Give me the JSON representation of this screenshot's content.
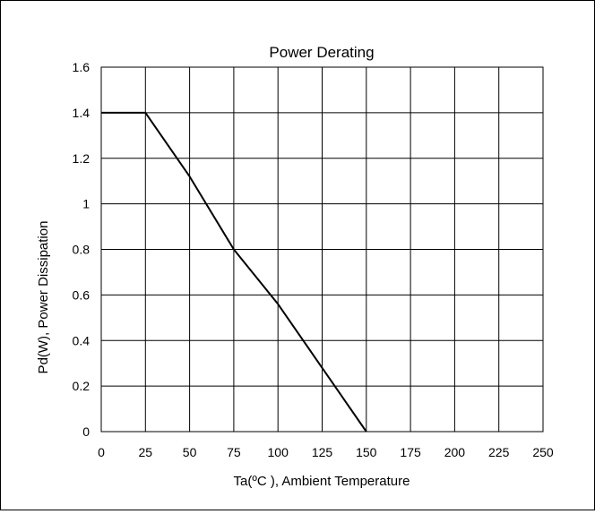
{
  "chart_data": {
    "type": "line",
    "title": "Power Derating",
    "xlabel": "Ta(ºC ), Ambient Temperature",
    "ylabel": "Pd(W), Power Dissipation",
    "xlim": [
      0,
      250
    ],
    "ylim": [
      0,
      1.6
    ],
    "x_ticks": [
      "0",
      "25",
      "50",
      "75",
      "100",
      "125",
      "150",
      "175",
      "200",
      "225",
      "250"
    ],
    "y_ticks": [
      "0",
      "0.2",
      "0.4",
      "0.6",
      "0.8",
      "1",
      "1.2",
      "1.4",
      "1.6"
    ],
    "grid": true,
    "legend": "none",
    "series": [
      {
        "x": [
          0,
          25,
          50,
          75,
          100,
          125,
          150
        ],
        "y": [
          1.4,
          1.4,
          1.12,
          0.8,
          0.56,
          0.28,
          0
        ],
        "color": "#000000"
      }
    ]
  }
}
